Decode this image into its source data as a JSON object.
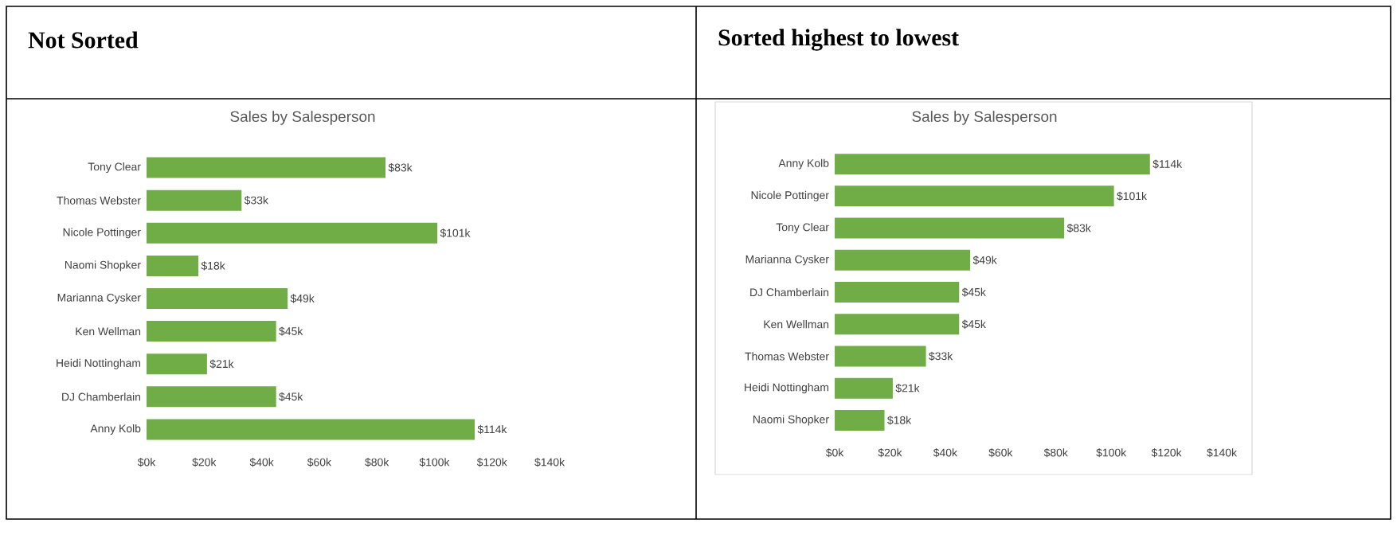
{
  "chart_data": [
    {
      "type": "bar",
      "orientation": "horizontal",
      "title": "Not Sorted",
      "subtitle": "Sales by Salesperson",
      "categories": [
        "Tony Clear",
        "Thomas Webster",
        "Nicole Pottinger",
        "Naomi Shopker",
        "Marianna Cysker",
        "Ken Wellman",
        "Heidi Nottingham",
        "DJ Chamberlain",
        "Anny Kolb"
      ],
      "values": [
        83,
        33,
        101,
        18,
        49,
        45,
        21,
        45,
        114
      ],
      "value_labels": [
        "$83k",
        "$33k",
        "$101k",
        "$18k",
        "$49k",
        "$45k",
        "$21k",
        "$45k",
        "$114k"
      ],
      "color": "#70ad47",
      "xlim": [
        0,
        140
      ],
      "xticks": [
        {
          "value": 0,
          "label": "$0k"
        },
        {
          "value": 20,
          "label": "$20k"
        },
        {
          "value": 40,
          "label": "$40k"
        },
        {
          "value": 60,
          "label": "$60k"
        },
        {
          "value": 80,
          "label": "$80k"
        },
        {
          "value": 100,
          "label": "$100k"
        },
        {
          "value": 120,
          "label": "$120k"
        },
        {
          "value": 140,
          "label": "$140k"
        }
      ]
    },
    {
      "type": "bar",
      "orientation": "horizontal",
      "title": "Sorted highest to lowest",
      "subtitle": "Sales by Salesperson",
      "categories": [
        "Anny Kolb",
        "Nicole Pottinger",
        "Tony Clear",
        "Marianna Cysker",
        "DJ Chamberlain",
        "Ken Wellman",
        "Thomas Webster",
        "Heidi Nottingham",
        "Naomi Shopker"
      ],
      "values": [
        114,
        101,
        83,
        49,
        45,
        45,
        33,
        21,
        18
      ],
      "value_labels": [
        "$114k",
        "$101k",
        "$83k",
        "$49k",
        "$45k",
        "$45k",
        "$33k",
        "$21k",
        "$18k"
      ],
      "color": "#70ad47",
      "xlim": [
        0,
        140
      ],
      "xticks": [
        {
          "value": 0,
          "label": "$0k"
        },
        {
          "value": 20,
          "label": "$20k"
        },
        {
          "value": 40,
          "label": "$40k"
        },
        {
          "value": 60,
          "label": "$60k"
        },
        {
          "value": 80,
          "label": "$80k"
        },
        {
          "value": 100,
          "label": "$100k"
        },
        {
          "value": 120,
          "label": "$120k"
        },
        {
          "value": 140,
          "label": "$140k"
        }
      ]
    }
  ]
}
